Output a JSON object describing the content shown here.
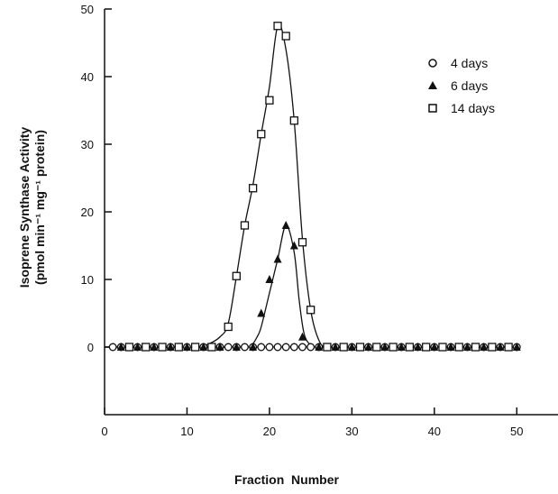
{
  "chart_data": {
    "type": "scatter",
    "title": "",
    "xlabel": "Fraction  Number",
    "ylabel": [
      "Isoprene Synthase Activity",
      "(pmol min⁻¹ mg⁻¹ protein)"
    ],
    "xlim": [
      0,
      55
    ],
    "ylim": [
      -10,
      50
    ],
    "xticks": [
      0,
      10,
      20,
      30,
      40,
      50
    ],
    "yticks": [
      0,
      10,
      20,
      30,
      40,
      50
    ],
    "grid": false,
    "legend_position": "top-right",
    "series": [
      {
        "name": "4 days",
        "marker": "circle-open",
        "x": [
          1,
          2,
          3,
          4,
          5,
          6,
          7,
          8,
          9,
          10,
          11,
          12,
          13,
          14,
          15,
          16,
          17,
          18,
          19,
          20,
          21,
          22,
          23,
          24,
          25,
          26,
          27,
          28,
          29,
          30,
          31,
          32,
          33,
          34,
          35,
          36,
          37,
          38,
          39,
          40,
          41,
          42,
          43,
          44,
          45,
          46,
          47,
          48,
          49,
          50
        ],
        "y": [
          0,
          0,
          0,
          0,
          0,
          0,
          0,
          0,
          0,
          0,
          0,
          0,
          0,
          0,
          0,
          0,
          0,
          0,
          0,
          0,
          0,
          0,
          0,
          0,
          0,
          0,
          0,
          0,
          0,
          0,
          0,
          0,
          0,
          0,
          0,
          0,
          0,
          0,
          0,
          0,
          0,
          0,
          0,
          0,
          0,
          0,
          0,
          0,
          0,
          0
        ]
      },
      {
        "name": "6 days",
        "marker": "triangle-filled",
        "x": [
          2,
          4,
          6,
          8,
          10,
          12,
          14,
          16,
          18,
          19,
          20,
          21,
          22,
          23,
          24,
          26,
          28,
          30,
          32,
          34,
          36,
          38,
          40,
          42,
          44,
          46,
          48,
          50
        ],
        "y": [
          0,
          0,
          0,
          0,
          0,
          0,
          0,
          0,
          0,
          5,
          10,
          13,
          18,
          15,
          1.5,
          0,
          0,
          0,
          0,
          0,
          0,
          0,
          0,
          0,
          0,
          0,
          0,
          0
        ]
      },
      {
        "name": "14 days",
        "marker": "square-open",
        "x": [
          3,
          5,
          7,
          9,
          11,
          13,
          15,
          16,
          17,
          18,
          19,
          20,
          21,
          22,
          23,
          24,
          25,
          27,
          29,
          31,
          33,
          35,
          37,
          39,
          41,
          43,
          45,
          47,
          49
        ],
        "y": [
          0,
          0,
          0,
          0,
          0,
          0,
          3,
          10.5,
          18,
          23.5,
          31.5,
          36.5,
          47.5,
          46,
          33.5,
          15.5,
          5.5,
          0,
          0,
          0,
          0,
          0,
          0,
          0,
          0,
          0,
          0,
          0,
          0
        ]
      }
    ],
    "curves": [
      {
        "name": "6 days",
        "x": [
          0,
          17,
          17.8,
          18.5,
          19,
          20,
          21,
          22,
          23,
          23.6,
          24.2,
          25,
          26,
          30,
          40,
          50
        ],
        "y": [
          0,
          0,
          0.2,
          1.5,
          3,
          8,
          13,
          18,
          14,
          7,
          2,
          0.3,
          0,
          0,
          0,
          0
        ]
      },
      {
        "name": "14 days",
        "x": [
          0,
          11,
          12.5,
          14,
          15,
          16,
          17,
          18,
          19,
          20,
          21,
          22,
          23,
          24,
          25,
          26,
          27,
          30,
          40,
          50
        ],
        "y": [
          0,
          0,
          0.4,
          1.5,
          3.5,
          10.5,
          18,
          24,
          31.5,
          38.5,
          47.5,
          44,
          33.5,
          16,
          5.5,
          1,
          0,
          0,
          0,
          0
        ]
      }
    ]
  }
}
